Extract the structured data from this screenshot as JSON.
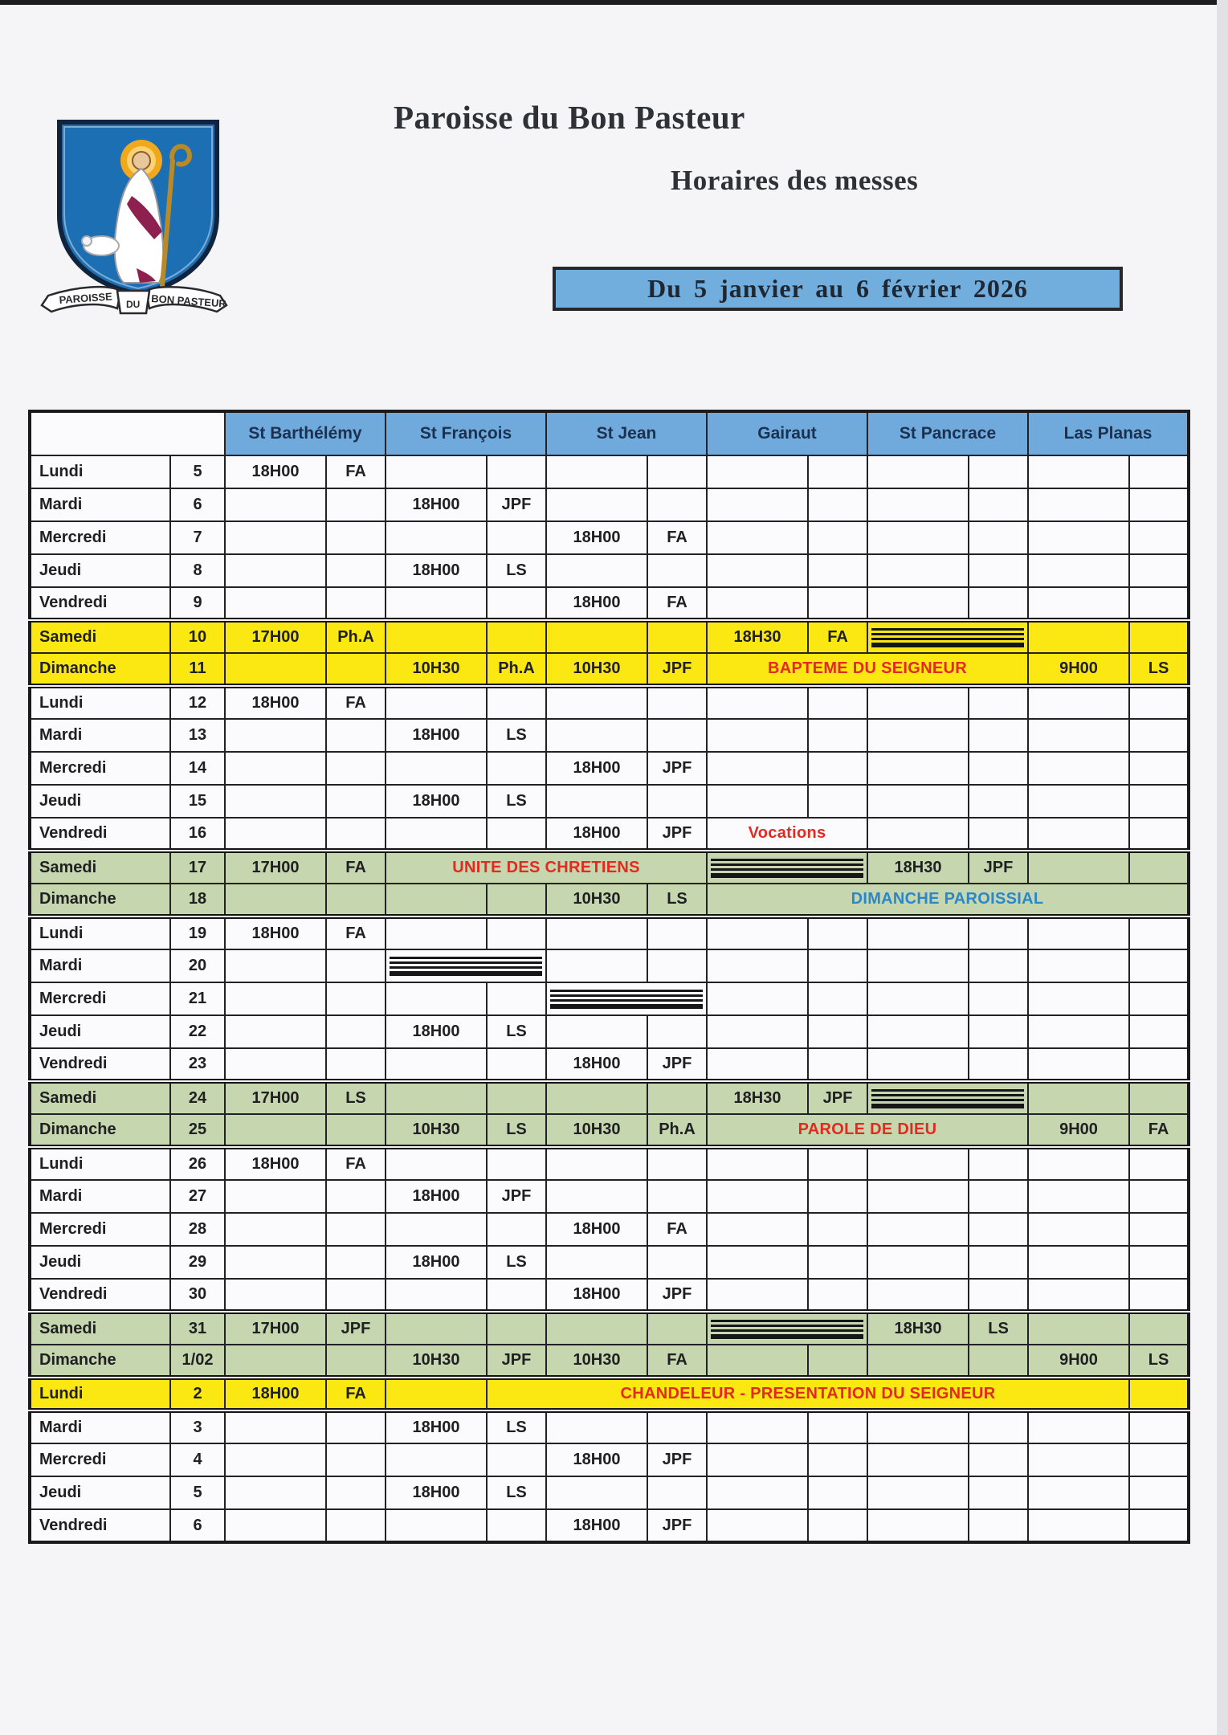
{
  "header": {
    "title": "Paroisse du Bon Pasteur",
    "subtitle": "Horaires des messes",
    "date_range": "Du 5 janvier au 6 février 2026",
    "logo_ribbon_left": "PAROISSE",
    "logo_ribbon_center": "DU",
    "logo_ribbon_right": "BON PASTEUR"
  },
  "colors": {
    "banner_blue": "#72aedd",
    "table_header_blue": "#70a9dc",
    "row_yellow": "#fbe813",
    "row_green": "#c6d7af",
    "event_red": "#e4291e",
    "event_blue": "#2b87c8",
    "shield_blue": "#1d6fb4",
    "halo_gold": "#f2a81d",
    "ink": "#202023"
  },
  "table": {
    "churches": [
      "St Barthélémy",
      "St François",
      "St Jean",
      "Gairaut",
      "St Pancrace",
      "Las Planas"
    ],
    "rows": [
      {
        "day": "Lundi",
        "date": "5",
        "bg": "white",
        "slots": [
          {
            "k": "tc",
            "t": "18H00",
            "c": "FA"
          },
          {
            "k": "e"
          },
          {
            "k": "e"
          },
          {
            "k": "e"
          },
          {
            "k": "e"
          },
          {
            "k": "e"
          }
        ]
      },
      {
        "day": "Mardi",
        "date": "6",
        "bg": "white",
        "slots": [
          {
            "k": "e"
          },
          {
            "k": "tc",
            "t": "18H00",
            "c": "JPF"
          },
          {
            "k": "e"
          },
          {
            "k": "e"
          },
          {
            "k": "e"
          },
          {
            "k": "e"
          }
        ]
      },
      {
        "day": "Mercredi",
        "date": "7",
        "bg": "white",
        "slots": [
          {
            "k": "e"
          },
          {
            "k": "e"
          },
          {
            "k": "tc",
            "t": "18H00",
            "c": "FA"
          },
          {
            "k": "e"
          },
          {
            "k": "e"
          },
          {
            "k": "e"
          }
        ]
      },
      {
        "day": "Jeudi",
        "date": "8",
        "bg": "white",
        "slots": [
          {
            "k": "e"
          },
          {
            "k": "tc",
            "t": "18H00",
            "c": "LS"
          },
          {
            "k": "e"
          },
          {
            "k": "e"
          },
          {
            "k": "e"
          },
          {
            "k": "e"
          }
        ]
      },
      {
        "day": "Vendredi",
        "date": "9",
        "bg": "white",
        "slots": [
          {
            "k": "e"
          },
          {
            "k": "e"
          },
          {
            "k": "tc",
            "t": "18H00",
            "c": "FA"
          },
          {
            "k": "e"
          },
          {
            "k": "e"
          },
          {
            "k": "e"
          }
        ]
      },
      {
        "day": "Samedi",
        "date": "10",
        "bg": "yellow",
        "sep": "top",
        "slots": [
          {
            "k": "tc",
            "t": "17H00",
            "c": "Ph.A"
          },
          {
            "k": "e"
          },
          {
            "k": "e"
          },
          {
            "k": "tc",
            "t": "18H30",
            "c": "FA"
          },
          {
            "k": "h"
          },
          {
            "k": "e"
          }
        ]
      },
      {
        "day": "Dimanche",
        "date": "11",
        "bg": "yellow",
        "sep": "bottom",
        "slots": [
          {
            "k": "e"
          },
          {
            "k": "tc",
            "t": "10H30",
            "c": "Ph.A"
          },
          {
            "k": "tc",
            "t": "10H30",
            "c": "JPF"
          },
          {
            "k": "s",
            "n": 4,
            "col": "red",
            "t": "BAPTEME DU SEIGNEUR"
          },
          {
            "k": "tc",
            "t": "9H00",
            "c": "LS"
          }
        ]
      },
      {
        "day": "Lundi",
        "date": "12",
        "bg": "white",
        "slots": [
          {
            "k": "tc",
            "t": "18H00",
            "c": "FA"
          },
          {
            "k": "e"
          },
          {
            "k": "e"
          },
          {
            "k": "e"
          },
          {
            "k": "e"
          },
          {
            "k": "e"
          }
        ]
      },
      {
        "day": "Mardi",
        "date": "13",
        "bg": "white",
        "slots": [
          {
            "k": "e"
          },
          {
            "k": "tc",
            "t": "18H00",
            "c": "LS"
          },
          {
            "k": "e"
          },
          {
            "k": "e"
          },
          {
            "k": "e"
          },
          {
            "k": "e"
          }
        ]
      },
      {
        "day": "Mercredi",
        "date": "14",
        "bg": "white",
        "slots": [
          {
            "k": "e"
          },
          {
            "k": "e"
          },
          {
            "k": "tc",
            "t": "18H00",
            "c": "JPF"
          },
          {
            "k": "e"
          },
          {
            "k": "e"
          },
          {
            "k": "e"
          }
        ]
      },
      {
        "day": "Jeudi",
        "date": "15",
        "bg": "white",
        "slots": [
          {
            "k": "e"
          },
          {
            "k": "tc",
            "t": "18H00",
            "c": "LS"
          },
          {
            "k": "e"
          },
          {
            "k": "e"
          },
          {
            "k": "e"
          },
          {
            "k": "e"
          }
        ]
      },
      {
        "day": "Vendredi",
        "date": "16",
        "bg": "white",
        "slots": [
          {
            "k": "e"
          },
          {
            "k": "e"
          },
          {
            "k": "tc",
            "t": "18H00",
            "c": "JPF"
          },
          {
            "k": "s",
            "n": 2,
            "col": "red",
            "t": "Vocations"
          },
          {
            "k": "e"
          },
          {
            "k": "e"
          }
        ]
      },
      {
        "day": "Samedi",
        "date": "17",
        "bg": "green",
        "sep": "top",
        "slots": [
          {
            "k": "tc",
            "t": "17H00",
            "c": "FA"
          },
          {
            "k": "s",
            "n": 4,
            "col": "red",
            "t": "UNITE DES CHRETIENS"
          },
          {
            "k": "h"
          },
          {
            "k": "tc",
            "t": "18H30",
            "c": "JPF"
          },
          {
            "k": "e"
          }
        ]
      },
      {
        "day": "Dimanche",
        "date": "18",
        "bg": "green",
        "sep": "bottom",
        "slots": [
          {
            "k": "e"
          },
          {
            "k": "e"
          },
          {
            "k": "tc",
            "t": "10H30",
            "c": "LS"
          },
          {
            "k": "s",
            "n": 6,
            "col": "blue",
            "t": "DIMANCHE PAROISSIAL"
          }
        ]
      },
      {
        "day": "Lundi",
        "date": "19",
        "bg": "white",
        "slots": [
          {
            "k": "tc",
            "t": "18H00",
            "c": "FA"
          },
          {
            "k": "e"
          },
          {
            "k": "e"
          },
          {
            "k": "e"
          },
          {
            "k": "e"
          },
          {
            "k": "e"
          }
        ]
      },
      {
        "day": "Mardi",
        "date": "20",
        "bg": "white",
        "slots": [
          {
            "k": "e"
          },
          {
            "k": "h"
          },
          {
            "k": "e"
          },
          {
            "k": "e"
          },
          {
            "k": "e"
          },
          {
            "k": "e"
          }
        ]
      },
      {
        "day": "Mercredi",
        "date": "21",
        "bg": "white",
        "slots": [
          {
            "k": "e"
          },
          {
            "k": "e"
          },
          {
            "k": "h"
          },
          {
            "k": "e"
          },
          {
            "k": "e"
          },
          {
            "k": "e"
          }
        ]
      },
      {
        "day": "Jeudi",
        "date": "22",
        "bg": "white",
        "slots": [
          {
            "k": "e"
          },
          {
            "k": "tc",
            "t": "18H00",
            "c": "LS"
          },
          {
            "k": "e"
          },
          {
            "k": "e"
          },
          {
            "k": "e"
          },
          {
            "k": "e"
          }
        ]
      },
      {
        "day": "Vendredi",
        "date": "23",
        "bg": "white",
        "slots": [
          {
            "k": "e"
          },
          {
            "k": "e"
          },
          {
            "k": "tc",
            "t": "18H00",
            "c": "JPF"
          },
          {
            "k": "e"
          },
          {
            "k": "e"
          },
          {
            "k": "e"
          }
        ]
      },
      {
        "day": "Samedi",
        "date": "24",
        "bg": "green",
        "sep": "top",
        "slots": [
          {
            "k": "tc",
            "t": "17H00",
            "c": "LS"
          },
          {
            "k": "e"
          },
          {
            "k": "e"
          },
          {
            "k": "tc",
            "t": "18H30",
            "c": "JPF"
          },
          {
            "k": "h"
          },
          {
            "k": "e"
          }
        ]
      },
      {
        "day": "Dimanche",
        "date": "25",
        "bg": "green",
        "sep": "bottom",
        "slots": [
          {
            "k": "e"
          },
          {
            "k": "tc",
            "t": "10H30",
            "c": "LS"
          },
          {
            "k": "tc",
            "t": "10H30",
            "c": "Ph.A"
          },
          {
            "k": "s",
            "n": 4,
            "col": "red",
            "t": "PAROLE DE DIEU"
          },
          {
            "k": "tc",
            "t": "9H00",
            "c": "FA"
          }
        ]
      },
      {
        "day": "Lundi",
        "date": "26",
        "bg": "white",
        "slots": [
          {
            "k": "tc",
            "t": "18H00",
            "c": "FA"
          },
          {
            "k": "e"
          },
          {
            "k": "e"
          },
          {
            "k": "e"
          },
          {
            "k": "e"
          },
          {
            "k": "e"
          }
        ]
      },
      {
        "day": "Mardi",
        "date": "27",
        "bg": "white",
        "slots": [
          {
            "k": "e"
          },
          {
            "k": "tc",
            "t": "18H00",
            "c": "JPF"
          },
          {
            "k": "e"
          },
          {
            "k": "e"
          },
          {
            "k": "e"
          },
          {
            "k": "e"
          }
        ]
      },
      {
        "day": "Mercredi",
        "date": "28",
        "bg": "white",
        "slots": [
          {
            "k": "e"
          },
          {
            "k": "e"
          },
          {
            "k": "tc",
            "t": "18H00",
            "c": "FA"
          },
          {
            "k": "e"
          },
          {
            "k": "e"
          },
          {
            "k": "e"
          }
        ]
      },
      {
        "day": "Jeudi",
        "date": "29",
        "bg": "white",
        "slots": [
          {
            "k": "e"
          },
          {
            "k": "tc",
            "t": "18H00",
            "c": "LS"
          },
          {
            "k": "e"
          },
          {
            "k": "e"
          },
          {
            "k": "e"
          },
          {
            "k": "e"
          }
        ]
      },
      {
        "day": "Vendredi",
        "date": "30",
        "bg": "white",
        "slots": [
          {
            "k": "e"
          },
          {
            "k": "e"
          },
          {
            "k": "tc",
            "t": "18H00",
            "c": "JPF"
          },
          {
            "k": "e"
          },
          {
            "k": "e"
          },
          {
            "k": "e"
          }
        ]
      },
      {
        "day": "Samedi",
        "date": "31",
        "bg": "green",
        "sep": "top",
        "slots": [
          {
            "k": "tc",
            "t": "17H00",
            "c": "JPF"
          },
          {
            "k": "e"
          },
          {
            "k": "e"
          },
          {
            "k": "h"
          },
          {
            "k": "tc",
            "t": "18H30",
            "c": "LS"
          },
          {
            "k": "e"
          }
        ]
      },
      {
        "day": "Dimanche",
        "date": "1/02",
        "bg": "green",
        "sep": "bottom",
        "slots": [
          {
            "k": "e"
          },
          {
            "k": "tc",
            "t": "10H30",
            "c": "JPF"
          },
          {
            "k": "tc",
            "t": "10H30",
            "c": "FA"
          },
          {
            "k": "e"
          },
          {
            "k": "e"
          },
          {
            "k": "tc",
            "t": "9H00",
            "c": "LS"
          }
        ]
      },
      {
        "day": "Lundi",
        "date": "2",
        "bg": "yellow",
        "sep": "both",
        "slots": [
          {
            "k": "tc",
            "t": "18H00",
            "c": "FA"
          },
          {
            "k": "e1"
          },
          {
            "k": "s",
            "n": 8,
            "col": "red",
            "t": "CHANDELEUR - PRESENTATION DU SEIGNEUR"
          },
          {
            "k": "e1"
          }
        ]
      },
      {
        "day": "Mardi",
        "date": "3",
        "bg": "white",
        "slots": [
          {
            "k": "e"
          },
          {
            "k": "tc",
            "t": "18H00",
            "c": "LS"
          },
          {
            "k": "e"
          },
          {
            "k": "e"
          },
          {
            "k": "e"
          },
          {
            "k": "e"
          }
        ]
      },
      {
        "day": "Mercredi",
        "date": "4",
        "bg": "white",
        "slots": [
          {
            "k": "e"
          },
          {
            "k": "e"
          },
          {
            "k": "tc",
            "t": "18H00",
            "c": "JPF"
          },
          {
            "k": "e"
          },
          {
            "k": "e"
          },
          {
            "k": "e"
          }
        ]
      },
      {
        "day": "Jeudi",
        "date": "5",
        "bg": "white",
        "slots": [
          {
            "k": "e"
          },
          {
            "k": "tc",
            "t": "18H00",
            "c": "LS"
          },
          {
            "k": "e"
          },
          {
            "k": "e"
          },
          {
            "k": "e"
          },
          {
            "k": "e"
          }
        ]
      },
      {
        "day": "Vendredi",
        "date": "6",
        "bg": "white",
        "slots": [
          {
            "k": "e"
          },
          {
            "k": "e"
          },
          {
            "k": "tc",
            "t": "18H00",
            "c": "JPF"
          },
          {
            "k": "e"
          },
          {
            "k": "e"
          },
          {
            "k": "e"
          }
        ]
      }
    ]
  }
}
